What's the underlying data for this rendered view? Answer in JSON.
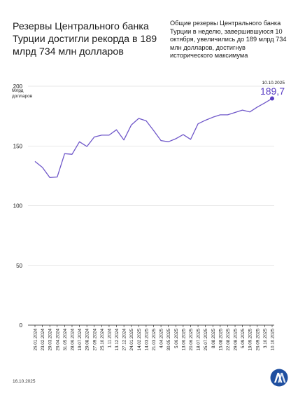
{
  "header": {
    "title": "Резервы Центрального банка Турции достигли рекорда в 189 млрд 734 млн долларов",
    "subtitle": "Общие резервы Центрального банка Турции в неделю, завершившуюся 10 октября, увеличились до 189 млрд 734 млн долларов, достигнув исторического максимума"
  },
  "footer": {
    "date": "16.10.2025"
  },
  "colors": {
    "line": "#6f57c9",
    "point": "#5b3fc4",
    "grid": "#d0d0d0",
    "axis": "#1a1a1a",
    "logo": "#1f4fa0"
  },
  "chart_data": {
    "type": "line",
    "ylabel": "Млрд долларов",
    "ylim": [
      0,
      200
    ],
    "yticks": [
      0,
      50,
      100,
      150,
      200
    ],
    "grid": true,
    "xtick_labels": [
      "26.01.2024",
      "23.02.2024",
      "29.03.2024",
      "26.04.2024",
      "31.05.2024",
      "28.06.2024",
      "19.07.2024",
      "29.08.2024",
      "27.09.2024",
      "25.10.2024",
      "1.11.2024",
      "13.12.2024",
      "27.12.2024",
      "24.01.2025",
      "14.02.2025",
      "14.03.2025",
      "21.03.2025",
      "4.04.2025",
      "30.05.2025",
      "5.06.2025",
      "13.06.2025",
      "20.06.2025",
      "18.07.2025",
      "25.07.2025",
      "8.08.2025",
      "15.08.2025",
      "22.08.2025",
      "29.08.2025",
      "5.09.2025",
      "19.09.2025",
      "26.09.2025",
      "3.10.2025",
      "10.10.2025"
    ],
    "series": [
      {
        "values": [
          137,
          132,
          123.5,
          124,
          143.5,
          143,
          153.5,
          149.5,
          157.5,
          159,
          159,
          163.5,
          155,
          167.5,
          173,
          171,
          163,
          154.5,
          153.5,
          156,
          159.5,
          155.5,
          168.5,
          171.5,
          174,
          176,
          176,
          178,
          180,
          178.5,
          182.5,
          186,
          189.7
        ]
      }
    ],
    "annotation": {
      "date": "10.10.2025",
      "value": "189,7"
    }
  }
}
